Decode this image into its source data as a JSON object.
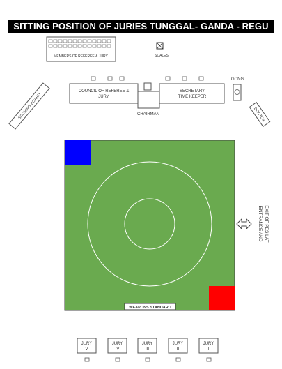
{
  "title": "SITTING POSITION OF JURIES TUNGGAL- GANDA - REGU",
  "labels": {
    "members": "MEMBERS OF REFEREE & JURY",
    "scales": "SCALES",
    "council_line1": "COUNCIL OF REFEREE &",
    "council_line2": "JURY",
    "secretary_line1": "SECRETARY",
    "secretary_line2": "TIME KEEPER",
    "chairman": "CHAIRMAN",
    "gong": "GONG",
    "scoring_board": "SCORING BOARD",
    "doctor": "DOCTOR",
    "entrance_line1": "ENTRANCE AND",
    "entrance_line2": "EXIT OF PESILAT",
    "weapons_standard": "WEAPONS STANDARD"
  },
  "juries": [
    {
      "name": "JURY",
      "number": "V"
    },
    {
      "name": "JURY",
      "number": "IV"
    },
    {
      "name": "JURY",
      "number": "III"
    },
    {
      "name": "JURY",
      "number": "II"
    },
    {
      "name": "JURY",
      "number": "I"
    }
  ],
  "colors": {
    "arena": "#6aaa4f",
    "blue_corner": "#0000ff",
    "red_corner": "#ff0000",
    "line": "#333333"
  }
}
